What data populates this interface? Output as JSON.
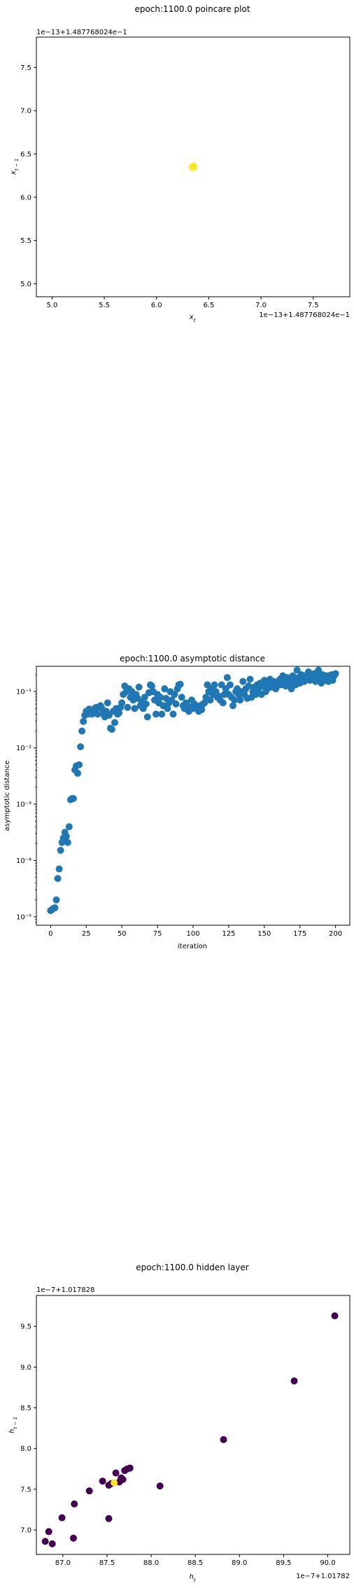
{
  "chart_data": [
    {
      "type": "scatter",
      "title": "epoch:1100.0 poincare plot",
      "xlabel": "x_t",
      "ylabel": "x_{t-1}",
      "x_offset_label": "1e−13+1.487768024e−1",
      "y_offset_label": "1e−13+1.487768024e−1",
      "xlim": [
        4.85,
        7.85
      ],
      "ylim": [
        4.85,
        7.85
      ],
      "xticks": [
        "5.0",
        "5.5",
        "6.0",
        "6.5",
        "7.0",
        "7.5"
      ],
      "yticks": [
        "5.0",
        "5.5",
        "6.0",
        "6.5",
        "7.0",
        "7.5"
      ],
      "points": [
        {
          "x": 6.35,
          "y": 6.35,
          "color": "#fde725"
        }
      ]
    },
    {
      "type": "scatter",
      "title": "epoch:1100.0 asymptotic distance",
      "xlabel": "iteration",
      "ylabel": "asymptotic distance",
      "yscale": "log",
      "xlim": [
        -10,
        210
      ],
      "ylim_log10": [
        -5.15,
        -0.55
      ],
      "xticks": [
        "0",
        "25",
        "50",
        "75",
        "100",
        "125",
        "150",
        "175",
        "200"
      ],
      "yticks": [
        "10⁻⁵",
        "10⁻⁴",
        "10⁻³",
        "10⁻²",
        "10⁻¹"
      ],
      "color": "#1f77b4",
      "values_log10": [
        -4.89,
        -4.87,
        -4.85,
        -4.84,
        -4.7,
        -4.32,
        -4.15,
        -3.82,
        -3.68,
        -3.6,
        -3.5,
        -3.57,
        -3.68,
        -3.4,
        -2.92,
        -2.9,
        -2.9,
        -2.39,
        -2.32,
        -2.45,
        -2.3,
        -1.98,
        -1.7,
        -1.53,
        -1.42,
        -1.35,
        -1.4,
        -1.31,
        -1.35,
        -1.4,
        -1.33,
        -1.3,
        -1.28,
        -1.4,
        -1.28,
        -1.25,
        -1.3,
        -1.4,
        -1.45,
        -1.35,
        -1.2,
        -1.42,
        -1.65,
        -1.67,
        -1.35,
        -1.55,
        -1.3,
        -1.4,
        -1.38,
        -1.28,
        -1.2,
        -1.05,
        -0.9,
        -1.0,
        -1.28,
        -0.95,
        -1.1,
        -1.0,
        -1.15,
        -1.3,
        -1.05,
        -1.12,
        -0.92,
        -1.25,
        -1.18,
        -1.3,
        -1.1,
        -1.22,
        -1.45,
        -1.02,
        -0.88,
        -0.9,
        -1.0,
        -1.15,
        -1.4,
        -1.05,
        -1.2,
        -1.1,
        -1.4,
        -1.25,
        -0.95,
        -1.12,
        -1.3,
        -1.2,
        -1.0,
        -1.15,
        -1.4,
        -1.05,
        -1.22,
        -0.95,
        -0.88,
        -0.87,
        -1.1,
        -1.25,
        -1.3,
        -1.2,
        -1.25,
        -1.35,
        -1.28,
        -1.15,
        -1.3,
        -1.22,
        -1.28,
        -1.3,
        -1.35,
        -1.25,
        -1.32,
        -1.22,
        -1.2,
        -1.1,
        -0.88,
        -1.0,
        -1.15,
        -0.95,
        -1.05,
        -0.88,
        -1.0,
        -1.1,
        -1.08,
        -1.15,
        -0.88,
        -1.2,
        -1.05,
        -0.95,
        -0.75,
        -1.05,
        -0.88,
        -1.1,
        -1.25,
        -1.15,
        -1.0,
        -0.95,
        -1.05,
        -1.15,
        -1.0,
        -0.82,
        -1.05,
        -0.95,
        -1.12,
        -0.9,
        -0.78,
        -1.1,
        -1.0,
        -0.92,
        -1.05,
        -0.88,
        -0.95,
        -0.85,
        -1.05,
        -0.9,
        -0.8,
        -1.0,
        -0.95,
        -0.88,
        -0.78,
        -0.92,
        -0.85,
        -0.82,
        -0.95,
        -0.9,
        -0.85,
        -0.78,
        -0.88,
        -0.72,
        -0.82,
        -0.9,
        -0.75,
        -0.8,
        -0.85,
        -0.95,
        -0.72,
        -0.8,
        -0.88,
        -0.62,
        -0.75,
        -0.85,
        -0.7,
        -0.78,
        -0.82,
        -0.75,
        -0.7,
        -0.65,
        -0.8,
        -0.72,
        -0.75,
        -0.68,
        -0.82,
        -0.7,
        -0.62,
        -0.75,
        -0.85,
        -0.7,
        -0.78,
        -0.8,
        -0.72,
        -0.82,
        -0.75,
        -0.7,
        -0.8,
        -0.72,
        -0.68
      ]
    },
    {
      "type": "scatter",
      "title": "epoch:1100.0 hidden layer",
      "xlabel": "h_t",
      "ylabel": "h_{t-1}",
      "x_offset_label": "1e−7+1.01782",
      "y_offset_label": "1e−7+1.017828",
      "xlim": [
        86.7,
        90.25
      ],
      "ylim": [
        6.7,
        9.88
      ],
      "xticks": [
        "87.0",
        "87.5",
        "88.0",
        "88.5",
        "89.0",
        "89.5",
        "90.0"
      ],
      "yticks": [
        "7.0",
        "7.5",
        "8.0",
        "8.5",
        "9.0",
        "9.5"
      ],
      "points": [
        {
          "x": 90.08,
          "y": 9.63,
          "color": "#440154"
        },
        {
          "x": 89.62,
          "y": 8.83,
          "color": "#440154"
        },
        {
          "x": 88.82,
          "y": 8.11,
          "color": "#440154"
        },
        {
          "x": 88.1,
          "y": 7.54,
          "color": "#440154"
        },
        {
          "x": 87.52,
          "y": 7.14,
          "color": "#440154"
        },
        {
          "x": 87.12,
          "y": 6.9,
          "color": "#440154"
        },
        {
          "x": 86.88,
          "y": 6.83,
          "color": "#440154"
        },
        {
          "x": 86.8,
          "y": 6.86,
          "color": "#440154"
        },
        {
          "x": 86.84,
          "y": 6.98,
          "color": "#440154"
        },
        {
          "x": 86.99,
          "y": 7.15,
          "color": "#440154"
        },
        {
          "x": 87.13,
          "y": 7.32,
          "color": "#440154"
        },
        {
          "x": 87.3,
          "y": 7.48,
          "color": "#440154"
        },
        {
          "x": 87.45,
          "y": 7.6,
          "color": "#440154"
        },
        {
          "x": 87.52,
          "y": 7.55,
          "color": "#440154"
        },
        {
          "x": 87.55,
          "y": 7.57,
          "color": "#440154"
        },
        {
          "x": 87.6,
          "y": 7.7,
          "color": "#440154"
        },
        {
          "x": 87.66,
          "y": 7.64,
          "color": "#440154"
        },
        {
          "x": 87.7,
          "y": 7.73,
          "color": "#440154"
        },
        {
          "x": 87.73,
          "y": 7.75,
          "color": "#440154"
        },
        {
          "x": 87.76,
          "y": 7.76,
          "color": "#440154"
        },
        {
          "x": 87.68,
          "y": 7.62,
          "color": "#440154"
        },
        {
          "x": 87.64,
          "y": 7.59,
          "color": "#440154"
        },
        {
          "x": 87.58,
          "y": 7.58,
          "color": "#fde725"
        }
      ]
    }
  ]
}
